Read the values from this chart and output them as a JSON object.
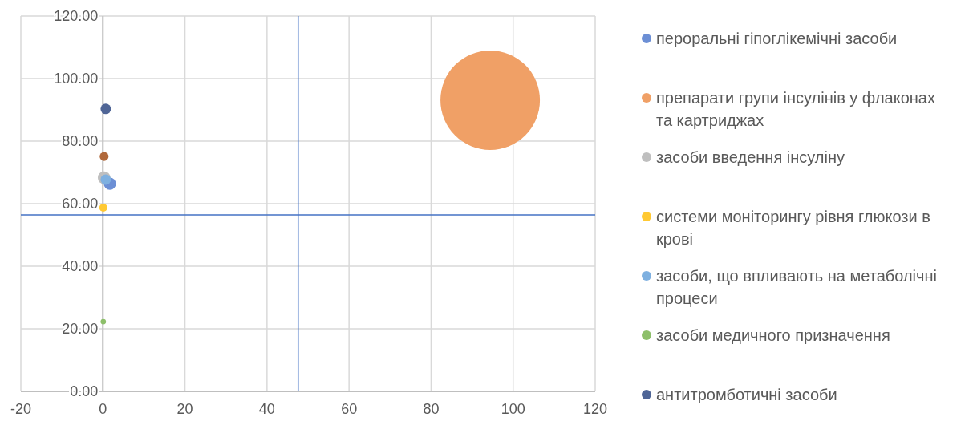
{
  "chart_data": {
    "type": "bubble",
    "xlim": [
      -20,
      120
    ],
    "ylim": [
      0,
      120
    ],
    "xticks": [
      -20,
      0,
      20,
      40,
      60,
      80,
      100,
      120
    ],
    "yticks": [
      {
        "value": 0,
        "label": "0.00"
      },
      {
        "value": 20,
        "label": "20.00"
      },
      {
        "value": 40,
        "label": "40.00"
      },
      {
        "value": 60,
        "label": "60.00"
      },
      {
        "value": 80,
        "label": "80.00"
      },
      {
        "value": 100,
        "label": "100.00"
      },
      {
        "value": 120,
        "label": "120.00"
      }
    ],
    "grid": true,
    "legend": "right",
    "series": [
      {
        "name": "пероральні гіпоглікемічні засоби",
        "color": "#6c8fd5",
        "x": [
          1.7
        ],
        "values": [
          66.4
        ],
        "sizes": [
          0.015
        ]
      },
      {
        "name": "препарати групи інсулінів у флаконах та картриджах",
        "color": "#f0a066",
        "x": [
          94.4
        ],
        "values": [
          93.1
        ],
        "sizes": [
          1
        ]
      },
      {
        "name": "засоби введення інсуліну",
        "color": "#bfbfbf",
        "x": [
          0.3
        ],
        "values": [
          68.3
        ],
        "sizes": [
          0.016
        ]
      },
      {
        "name": "системи моніторингу рівня глюкози в крові",
        "color": "#ffc933",
        "x": [
          0.1
        ],
        "values": [
          58.7
        ],
        "sizes": [
          0.0065
        ]
      },
      {
        "name": "засоби, що впливають на метаболічні процеси",
        "color": "#7eb0e0",
        "x": [
          0.7
        ],
        "values": [
          67.7
        ],
        "sizes": [
          0.011
        ]
      },
      {
        "name": "засоби медичного призначення",
        "color": "#8dbf6a",
        "x": [
          0.1
        ],
        "values": [
          22.3
        ],
        "sizes": [
          0.003
        ]
      },
      {
        "name": "антитромботичні засоби",
        "color": "#4f6596",
        "x": [
          0.7
        ],
        "values": [
          90.3
        ],
        "sizes": [
          0.011
        ]
      },
      {
        "color": "#b0683a",
        "x": [
          0.3
        ],
        "values": [
          75.1
        ],
        "sizes": [
          0.008
        ]
      }
    ],
    "ref_lines": [
      {
        "axis": "x",
        "value": 47.6,
        "color": "#4472c4"
      },
      {
        "axis": "y",
        "value": 56.4,
        "color": "#4472c4"
      }
    ]
  }
}
